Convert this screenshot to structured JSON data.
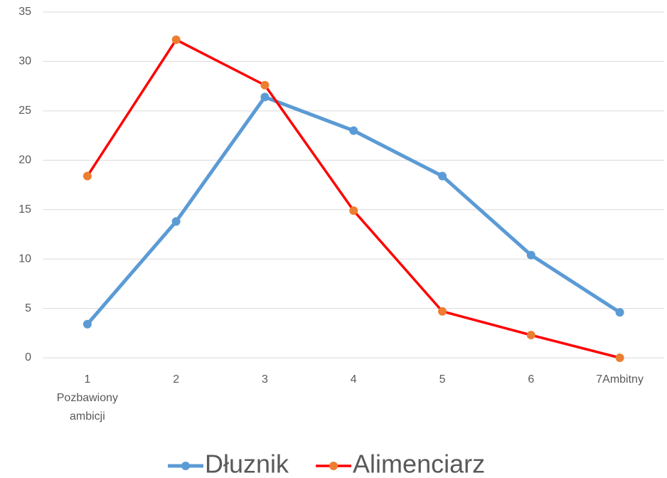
{
  "chart_data": {
    "type": "line",
    "categories": [
      "1\nPozbawiony\nambicji",
      "2",
      "3",
      "4",
      "5",
      "6",
      "7Ambitny"
    ],
    "series": [
      {
        "name": "Dłuznik",
        "color": "#5b9bd5",
        "marker_color": "#5b9bd5",
        "values": [
          3.4,
          13.8,
          26.4,
          23.0,
          18.4,
          10.4,
          4.6
        ]
      },
      {
        "name": "Alimenciarz",
        "color": "#ff0000",
        "marker_color": "#ed7d31",
        "values": [
          18.4,
          32.2,
          27.6,
          14.9,
          4.7,
          2.3,
          0
        ]
      }
    ],
    "ylim": [
      0,
      35
    ],
    "yticks": [
      0,
      5,
      10,
      15,
      20,
      25,
      30,
      35
    ],
    "grid": true,
    "legend": "bottom"
  }
}
